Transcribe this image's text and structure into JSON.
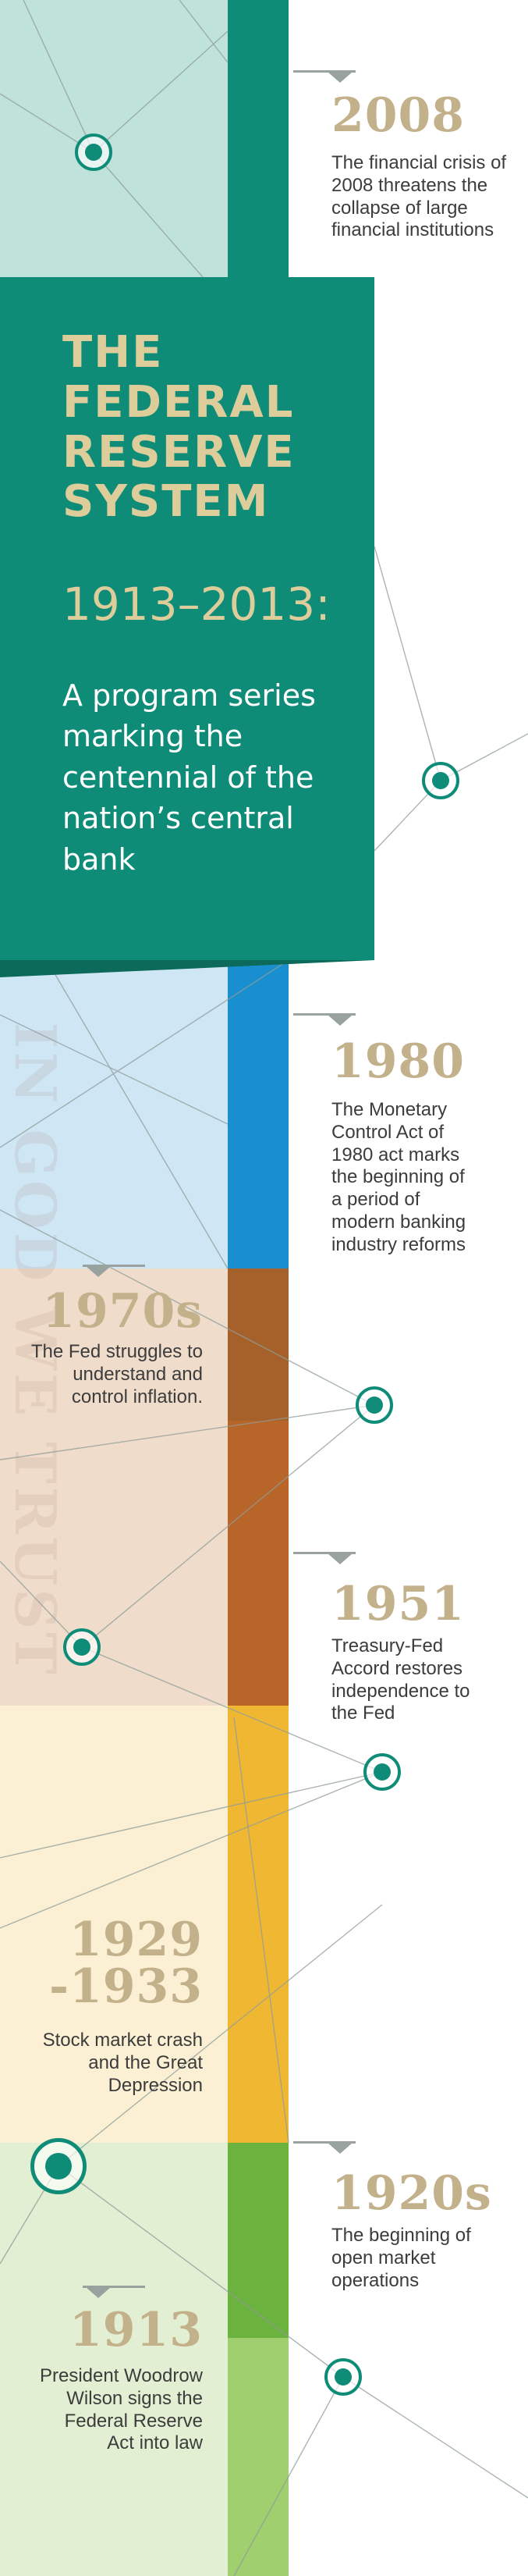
{
  "title": {
    "main": "THE FEDERAL RESERVE SYSTEM",
    "years": "1913–2013:",
    "subtitle": "A program series marking the centennial of the nation’s central bank"
  },
  "watermark": "IN GOD WE TRUST",
  "events": [
    {
      "year": "2008",
      "text": "The financial crisis of 2008 threatens the collapse of large financial institutions"
    },
    {
      "year": "1980",
      "text": "The Monetary Control Act of 1980 act marks the beginning of a period of modern banking industry reforms"
    },
    {
      "year": "1970s",
      "text": "The Fed struggles to understand and control inflation."
    },
    {
      "year": "1951",
      "text": "Treasury-Fed Accord restores independence to the Fed"
    },
    {
      "year": "1929 -1933",
      "text": "Stock market crash and the Great Depression"
    },
    {
      "year": "1920s",
      "text": "The beginning of open market operations"
    },
    {
      "year": "1913",
      "text": "President Woodrow Wilson signs the Federal Reserve Act into law"
    }
  ],
  "colors": {
    "teal": "#0f8c77",
    "gold_text": "#c2b18a",
    "bar_2008": "#0f8c77",
    "bar_1980": "#1a8fd0",
    "bar_1970s": "#a6612a",
    "bar_1951": "#b8652a",
    "bar_1929": "#f0b832",
    "bar_1920s": "#6cb23f",
    "bar_1913": "#9fcf6e"
  }
}
